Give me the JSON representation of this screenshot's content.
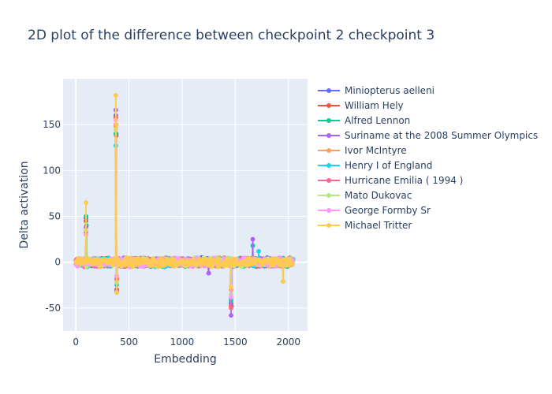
{
  "chart_data": {
    "type": "line",
    "title": "2D plot of the difference between checkpoint 2 checkpoint 3",
    "xlabel": "Embedding",
    "ylabel": "Delta activation",
    "xlim": [
      -120,
      2180
    ],
    "ylim": [
      -75,
      200
    ],
    "xticks": [
      0,
      500,
      1000,
      1500,
      2000
    ],
    "yticks": [
      -50,
      0,
      50,
      100,
      150
    ],
    "grid": true,
    "legend_position": "right",
    "mode": "lines+markers",
    "series": [
      {
        "name": "Miniopterus aelleni",
        "color": "#636efa",
        "noise": 4,
        "spikes": [
          [
            95,
            48
          ],
          [
            375,
            160
          ],
          [
            380,
            140
          ],
          [
            385,
            -32
          ],
          [
            1460,
            -45
          ],
          [
            1465,
            -48
          ]
        ]
      },
      {
        "name": "William Hely",
        "color": "#EF553B",
        "noise": 4,
        "spikes": [
          [
            95,
            45
          ],
          [
            375,
            158
          ],
          [
            380,
            138
          ],
          [
            385,
            -30
          ],
          [
            1460,
            -48
          ]
        ]
      },
      {
        "name": "Alfred Lennon",
        "color": "#00cc96",
        "noise": 4,
        "spikes": [
          [
            95,
            50
          ],
          [
            100,
            40
          ],
          [
            375,
            140
          ],
          [
            385,
            -33
          ],
          [
            1460,
            -42
          ],
          [
            1665,
            18
          ]
        ]
      },
      {
        "name": "Suriname at the 2008 Summer Olympics",
        "color": "#ab63fa",
        "noise": 4,
        "spikes": [
          [
            95,
            38
          ],
          [
            375,
            166
          ],
          [
            380,
            150
          ],
          [
            385,
            -32
          ],
          [
            1460,
            -58
          ],
          [
            1665,
            25
          ],
          [
            1250,
            -12
          ]
        ]
      },
      {
        "name": "Ivor McIntyre",
        "color": "#FFA15A",
        "noise": 4,
        "spikes": [
          [
            95,
            32
          ],
          [
            375,
            148
          ],
          [
            385,
            -20
          ],
          [
            1460,
            -30
          ]
        ]
      },
      {
        "name": "Henry I of England",
        "color": "#19d3f3",
        "noise": 4,
        "spikes": [
          [
            95,
            30
          ],
          [
            375,
            127
          ],
          [
            385,
            -25
          ],
          [
            1460,
            -40
          ],
          [
            1720,
            12
          ]
        ]
      },
      {
        "name": "Hurricane Emilia ( 1994 )",
        "color": "#FF6692",
        "noise": 4,
        "spikes": [
          [
            95,
            33
          ],
          [
            375,
            150
          ],
          [
            385,
            -18
          ],
          [
            1460,
            -50
          ]
        ]
      },
      {
        "name": "Mato Dukovac",
        "color": "#B6E880",
        "noise": 4,
        "spikes": [
          [
            95,
            35
          ],
          [
            375,
            145
          ],
          [
            385,
            -22
          ],
          [
            1460,
            -35
          ]
        ]
      },
      {
        "name": "George Formby Sr",
        "color": "#FF97FF",
        "noise": 4,
        "spikes": [
          [
            95,
            30
          ],
          [
            375,
            155
          ],
          [
            385,
            -15
          ],
          [
            1460,
            -38
          ]
        ]
      },
      {
        "name": "Michael Tritter",
        "color": "#FECB52",
        "noise": 4,
        "spikes": [
          [
            95,
            65
          ],
          [
            375,
            182
          ],
          [
            380,
            150
          ],
          [
            385,
            -33
          ],
          [
            1460,
            -27
          ],
          [
            1950,
            -21
          ]
        ]
      }
    ],
    "x_range_points": [
      0,
      2047
    ]
  }
}
